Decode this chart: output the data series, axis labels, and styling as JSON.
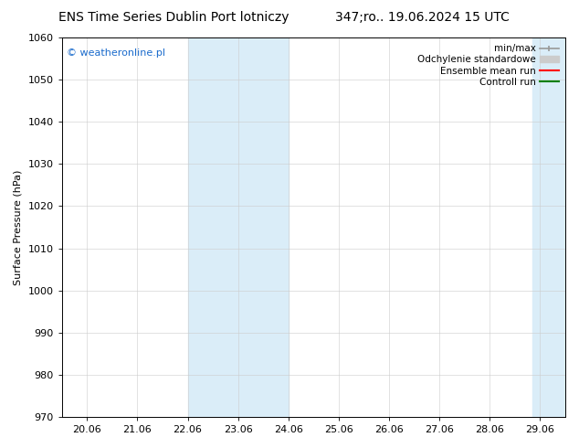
{
  "title_left": "ENS Time Series Dublin Port lotniczy",
  "title_right": "347;ro.. 19.06.2024 15 UTC",
  "ylabel": "Surface Pressure (hPa)",
  "ylim": [
    970,
    1060
  ],
  "yticks": [
    970,
    980,
    990,
    1000,
    1010,
    1020,
    1030,
    1040,
    1050,
    1060
  ],
  "xtick_labels": [
    "20.06",
    "21.06",
    "22.06",
    "23.06",
    "24.06",
    "25.06",
    "26.06",
    "27.06",
    "28.06",
    "29.06"
  ],
  "xtick_positions": [
    0,
    1,
    2,
    3,
    4,
    5,
    6,
    7,
    8,
    9
  ],
  "xlim": [
    -0.5,
    9.5
  ],
  "shaded_band1_x0": 2.0,
  "shaded_band1_x1": 4.0,
  "shaded_band2_x0": 8.85,
  "shaded_band2_x1": 9.5,
  "shaded_color": "#daedf8",
  "watermark": "© weatheronline.pl",
  "watermark_color": "#1a6bcc",
  "background_color": "#ffffff",
  "grid_color": "#cccccc",
  "title_fontsize": 10,
  "axis_fontsize": 8,
  "tick_fontsize": 8,
  "legend_fontsize": 7.5,
  "legend_color_minmax": "#999999",
  "legend_color_std": "#cccccc",
  "legend_color_ensemble": "#ff0000",
  "legend_color_control": "#008000"
}
